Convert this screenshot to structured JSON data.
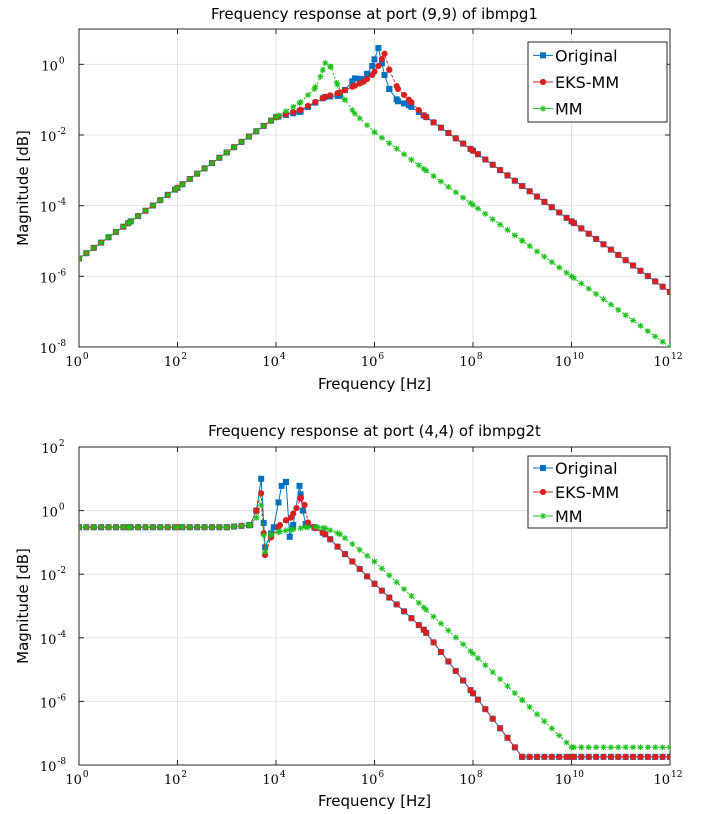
{
  "chart_data": [
    {
      "type": "line",
      "title": "Frequency response at port (9,9) of ibmpg1",
      "xlabel": "Frequency [Hz]",
      "ylabel": "Magnitude [dB]",
      "xscale": "log",
      "yscale": "log",
      "xlim": [
        1,
        1000000000000
      ],
      "ylim": [
        1e-08,
        10
      ],
      "xticks": [
        1,
        100,
        10000,
        1000000,
        100000000,
        10000000000,
        1000000000000
      ],
      "xtick_mantissa": [
        "10",
        "10",
        "10",
        "10",
        "10",
        "10",
        "10"
      ],
      "xtick_exponent": [
        "0",
        "2",
        "4",
        "6",
        "8",
        "10",
        "12"
      ],
      "yticks": [
        1e-08,
        1e-06,
        0.0001,
        0.01,
        1
      ],
      "ytick_mantissa": [
        "10",
        "10",
        "10",
        "10",
        "10"
      ],
      "ytick_exponent": [
        "-8",
        "-6",
        "-4",
        "-2",
        "0"
      ],
      "grid": true,
      "legend_position": "top-right",
      "series": [
        {
          "name": "Original",
          "color": "#0072bd",
          "marker": "square",
          "x": [
            1,
            10,
            100,
            1000,
            10000,
            30000,
            100000,
            200000,
            400000,
            600000,
            900000,
            1200000,
            1600000,
            2000000,
            3000000,
            5000000,
            10000000,
            100000000,
            1000000000,
            10000000000,
            1000000000000
          ],
          "y": [
            3.2e-06,
            3.2e-05,
            0.00032,
            0.0032,
            0.032,
            0.045,
            0.12,
            0.13,
            0.4,
            0.38,
            0.9,
            2.9,
            0.5,
            0.2,
            0.09,
            0.07,
            0.036,
            0.0036,
            0.00036,
            3.6e-05,
            3.6e-07
          ]
        },
        {
          "name": "EKS-MM",
          "color": "#d92020",
          "marker": "circle",
          "x": [
            1,
            10,
            100,
            1000,
            10000,
            30000,
            100000,
            200000,
            400000,
            600000,
            900000,
            1200000,
            1600000,
            2000000,
            3000000,
            5000000,
            10000000,
            100000000,
            1000000000,
            10000000000,
            1000000000000
          ],
          "y": [
            3.2e-06,
            3.2e-05,
            0.00032,
            0.0032,
            0.032,
            0.05,
            0.12,
            0.16,
            0.25,
            0.32,
            0.5,
            0.9,
            2.0,
            0.7,
            0.2,
            0.1,
            0.036,
            0.0036,
            0.00036,
            3.6e-05,
            3.6e-07
          ]
        },
        {
          "name": "MM",
          "color": "#19c219",
          "marker": "asterisk",
          "x": [
            1,
            10,
            100,
            1000,
            10000,
            30000,
            60000,
            80000,
            100000,
            130000,
            170000,
            250000,
            400000,
            1000000,
            10000000,
            100000000,
            1000000000,
            10000000000,
            1000000000000
          ],
          "y": [
            3.2e-06,
            3.2e-05,
            0.00032,
            0.0032,
            0.032,
            0.08,
            0.2,
            0.45,
            1.1,
            0.85,
            0.3,
            0.1,
            0.04,
            0.012,
            0.0011,
            0.000105,
            1.02e-05,
            1e-06,
            1e-08
          ]
        }
      ]
    },
    {
      "type": "line",
      "title": "Frequency response at port (4,4) of ibmpg2t",
      "xlabel": "Frequency [Hz]",
      "ylabel": "Magnitude [dB]",
      "xscale": "log",
      "yscale": "log",
      "xlim": [
        1,
        1000000000000
      ],
      "ylim": [
        1e-08,
        100
      ],
      "xticks": [
        1,
        100,
        10000,
        1000000,
        100000000,
        10000000000,
        1000000000000
      ],
      "xtick_mantissa": [
        "10",
        "10",
        "10",
        "10",
        "10",
        "10",
        "10"
      ],
      "xtick_exponent": [
        "0",
        "2",
        "4",
        "6",
        "8",
        "10",
        "12"
      ],
      "yticks": [
        1e-08,
        1e-06,
        0.0001,
        0.01,
        1,
        100
      ],
      "ytick_mantissa": [
        "10",
        "10",
        "10",
        "10",
        "10",
        "10"
      ],
      "ytick_exponent": [
        "-8",
        "-6",
        "-4",
        "-2",
        "0",
        "2"
      ],
      "grid": true,
      "legend_position": "top-right",
      "series": [
        {
          "name": "Original",
          "color": "#0072bd",
          "marker": "square",
          "x": [
            1,
            10,
            100,
            1000,
            3000,
            4000,
            5000,
            6000,
            9000,
            13000,
            16000,
            19000,
            22000,
            30000,
            35000,
            40000,
            60000,
            100000,
            1000000,
            10000000,
            100000000,
            1000000000,
            10000000000,
            1000000000000
          ],
          "y": [
            0.3,
            0.3,
            0.3,
            0.3,
            0.35,
            1.0,
            10.0,
            0.07,
            0.3,
            6.0,
            8.0,
            0.15,
            0.3,
            6.0,
            1.0,
            0.38,
            0.3,
            0.18,
            0.005,
            0.00018,
            1.8e-06,
            1.8e-08,
            1.8e-08,
            1.8e-08
          ]
        },
        {
          "name": "EKS-MM",
          "color": "#d92020",
          "marker": "circle",
          "x": [
            1,
            10,
            100,
            1000,
            3000,
            4000,
            5000,
            6000,
            8000,
            12000,
            16000,
            20000,
            26000,
            32000,
            38000,
            45000,
            60000,
            100000,
            1000000,
            10000000,
            100000000,
            1000000000,
            10000000000,
            1000000000000
          ],
          "y": [
            0.3,
            0.3,
            0.3,
            0.3,
            0.35,
            1.0,
            3.5,
            0.04,
            0.15,
            0.35,
            0.5,
            0.6,
            1.2,
            2.5,
            1.5,
            0.4,
            0.3,
            0.18,
            0.005,
            0.00018,
            1.8e-06,
            1.8e-08,
            1.8e-08,
            1.8e-08
          ]
        },
        {
          "name": "MM",
          "color": "#19c219",
          "marker": "asterisk",
          "x": [
            1,
            10,
            100,
            1000,
            3000,
            4000,
            5000,
            6000,
            8000,
            12000,
            20000,
            40000,
            70000,
            100000,
            200000,
            1000000,
            10000000,
            100000000,
            1000000000,
            10000000000,
            1000000000000
          ],
          "y": [
            0.3,
            0.3,
            0.3,
            0.3,
            0.35,
            0.6,
            1.5,
            0.05,
            0.18,
            0.22,
            0.25,
            0.3,
            0.3,
            0.28,
            0.18,
            0.025,
            0.0009,
            3.2e-05,
            1.1e-06,
            3.6e-08,
            3.6e-08
          ]
        }
      ]
    }
  ]
}
